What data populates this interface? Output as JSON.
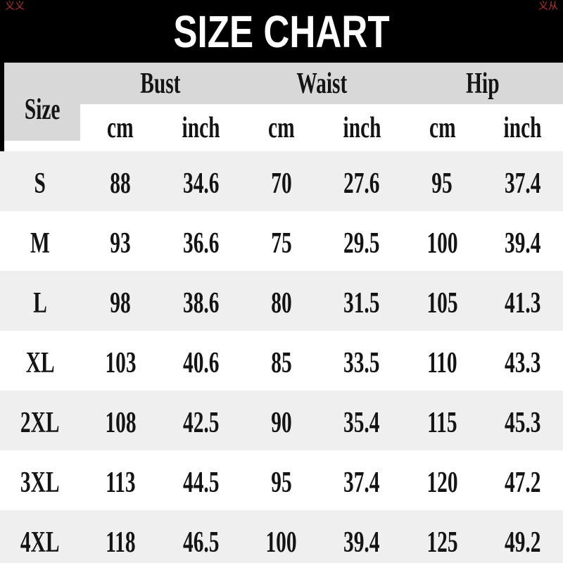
{
  "chart_data": {
    "type": "table",
    "title": "SIZE CHART",
    "size_label": "Size",
    "groups": [
      "Bust",
      "Waist",
      "Hip"
    ],
    "units": [
      "cm",
      "inch",
      "cm",
      "inch",
      "cm",
      "inch"
    ],
    "columns": [
      "Size",
      "Bust cm",
      "Bust inch",
      "Waist cm",
      "Waist inch",
      "Hip cm",
      "Hip inch"
    ],
    "rows": [
      {
        "size": "S",
        "values": [
          "88",
          "34.6",
          "70",
          "27.6",
          "95",
          "37.4"
        ]
      },
      {
        "size": "M",
        "values": [
          "93",
          "36.6",
          "75",
          "29.5",
          "100",
          "39.4"
        ]
      },
      {
        "size": "L",
        "values": [
          "98",
          "38.6",
          "80",
          "31.5",
          "105",
          "41.3"
        ]
      },
      {
        "size": "XL",
        "values": [
          "103",
          "40.6",
          "85",
          "33.5",
          "110",
          "43.3"
        ]
      },
      {
        "size": "2XL",
        "values": [
          "108",
          "42.5",
          "90",
          "35.4",
          "115",
          "45.3"
        ]
      },
      {
        "size": "3XL",
        "values": [
          "113",
          "44.5",
          "95",
          "37.4",
          "120",
          "47.2"
        ]
      },
      {
        "size": "4XL",
        "values": [
          "118",
          "46.5",
          "100",
          "39.4",
          "125",
          "49.2"
        ]
      }
    ]
  },
  "watermarks": {
    "left": "义义",
    "right": "义从"
  },
  "colors": {
    "banner_bg": "#000000",
    "banner_text": "#ffffff",
    "header_gray": "#d8d8d8",
    "row_gray": "#efefef",
    "row_white": "#ffffff",
    "text": "#141414",
    "watermark_red": "#c03030"
  }
}
